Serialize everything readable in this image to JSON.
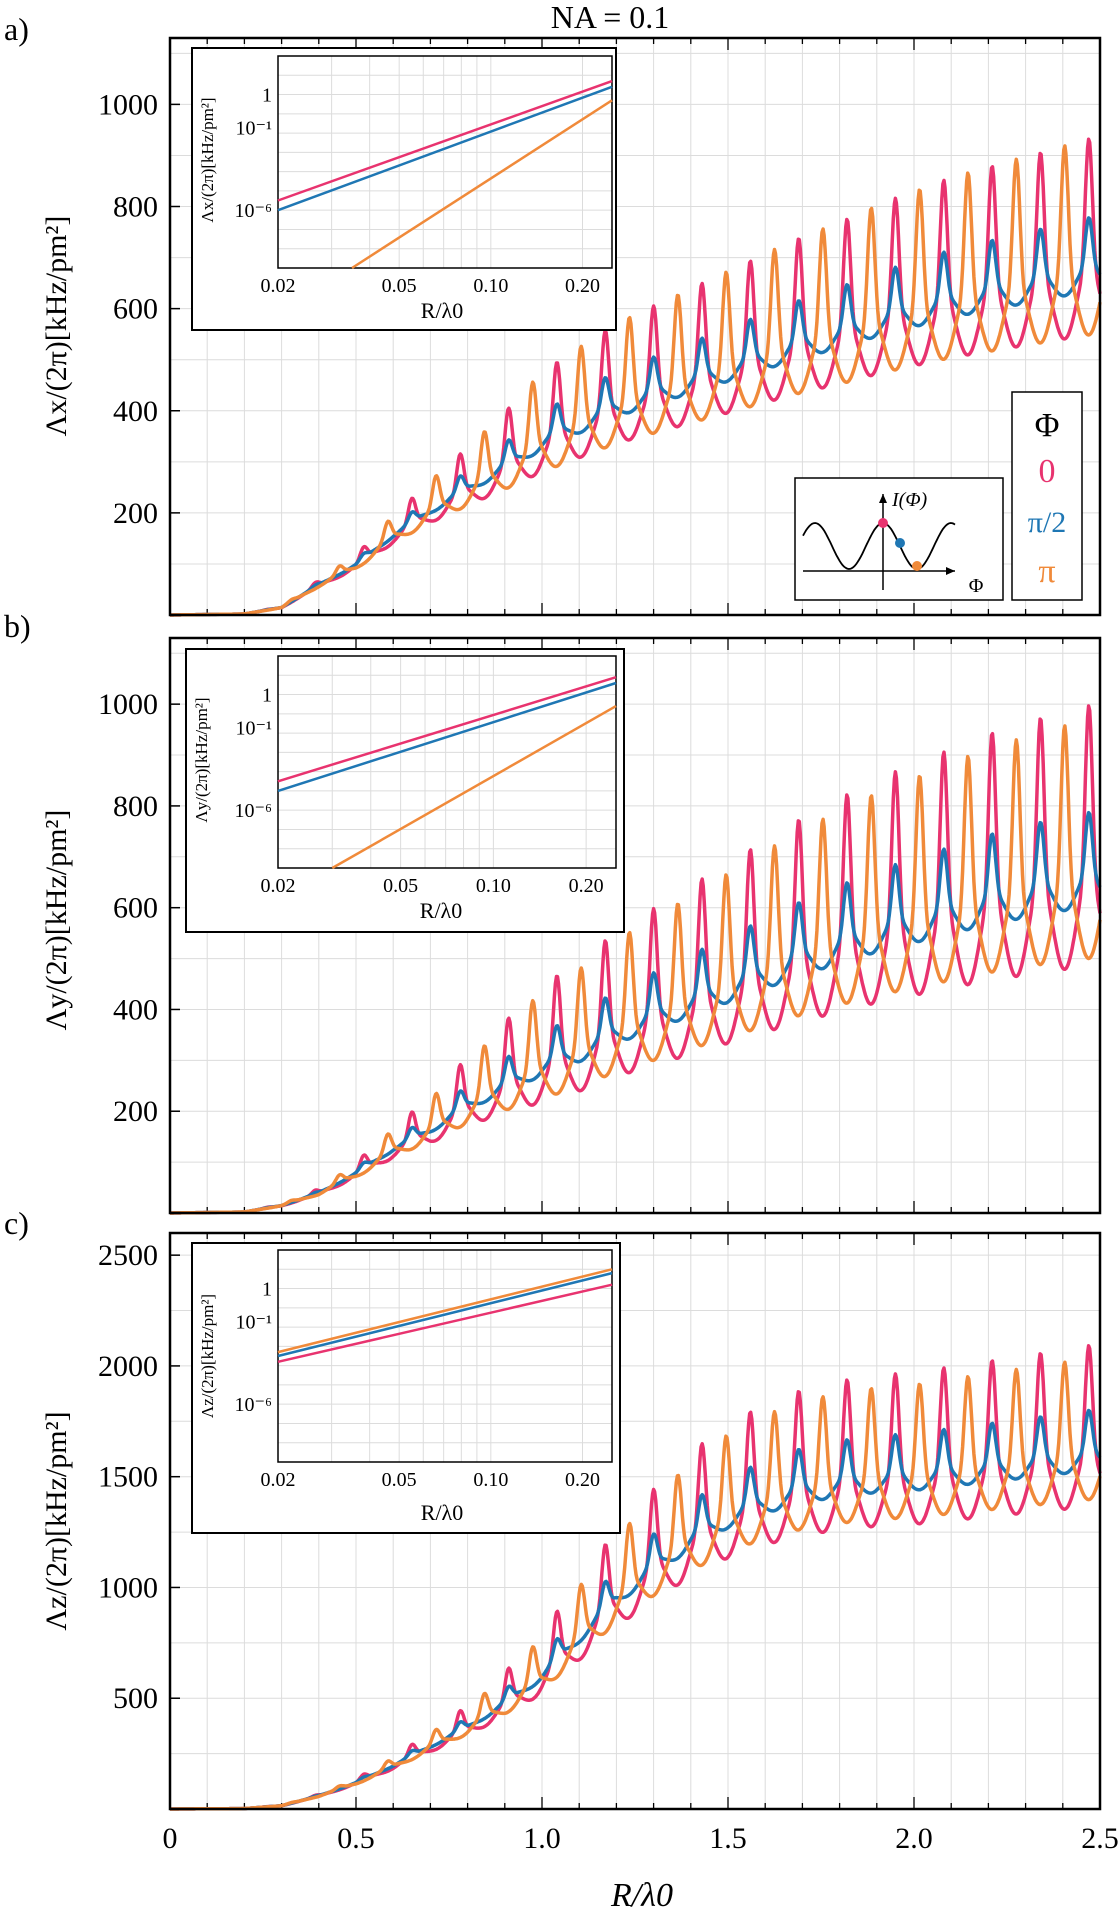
{
  "figure": {
    "title": "NA = 0.1",
    "xlabel": "R/λ0",
    "xticks": [
      "0",
      "0.5",
      "1.0",
      "1.5",
      "2.0",
      "2.5"
    ],
    "colors": {
      "phi0": "#e8336f",
      "phi_pi2": "#1f77b4",
      "phi_pi": "#f08a3a"
    }
  },
  "legend": {
    "title": "Φ",
    "entries": [
      {
        "label": "0",
        "color": "#e8336f"
      },
      {
        "label": "π/2",
        "color": "#1f77b4"
      },
      {
        "label": "π",
        "color": "#f08a3a"
      }
    ],
    "schematic": {
      "ylabel": "I(Φ)",
      "xlabel": "Φ"
    }
  },
  "chart_data": [
    {
      "type": "line",
      "panel": "a)",
      "ylabel": "Λx/(2π)[kHz/pm²]",
      "xlim": [
        0,
        2.5
      ],
      "ylim": [
        0,
        1130
      ],
      "yticks": [
        200,
        400,
        600,
        800,
        1000
      ],
      "envelope": [
        [
          0,
          0
        ],
        [
          0.2,
          2
        ],
        [
          0.3,
          15
        ],
        [
          0.4,
          60
        ],
        [
          0.5,
          100
        ],
        [
          0.6,
          160
        ],
        [
          0.7,
          210
        ],
        [
          0.8,
          255
        ],
        [
          0.9,
          300
        ],
        [
          1.0,
          350
        ],
        [
          1.1,
          385
        ],
        [
          1.2,
          420
        ],
        [
          1.3,
          445
        ],
        [
          1.4,
          470
        ],
        [
          1.5,
          495
        ],
        [
          1.6,
          520
        ],
        [
          1.7,
          545
        ],
        [
          1.8,
          565
        ],
        [
          1.9,
          590
        ],
        [
          2.0,
          610
        ],
        [
          2.1,
          630
        ],
        [
          2.2,
          645
        ],
        [
          2.3,
          660
        ],
        [
          2.4,
          675
        ],
        [
          2.5,
          690
        ]
      ],
      "series": [
        {
          "name": "0",
          "color": "#e8336f",
          "osc_amp": 0.4,
          "sign": 1
        },
        {
          "name": "π/2",
          "color": "#1f77b4",
          "osc_amp": 0.15,
          "sign": 1
        },
        {
          "name": "π",
          "color": "#f08a3a",
          "osc_amp": 0.4,
          "sign": -1
        }
      ],
      "inset": {
        "ylabel": "Λx/(2π)[kHz/pm²]",
        "xlabel": "R/λ0",
        "xticks": [
          "0.02",
          "0.05",
          "0.10",
          "0.20"
        ],
        "yticks": [
          "1",
          "10⁻¹",
          "10⁻⁶"
        ],
        "ylog_range": [
          -9,
          2
        ],
        "series": [
          {
            "name": "0",
            "color": "#e8336f",
            "log_at_0.02": -5.5,
            "log_at_0.25": 0.7
          },
          {
            "name": "π/2",
            "color": "#1f77b4",
            "log_at_0.02": -6.0,
            "log_at_0.25": 0.4
          },
          {
            "name": "π",
            "color": "#f08a3a",
            "log_at_0.035": -9.0,
            "log_at_0.25": -0.3
          }
        ]
      }
    },
    {
      "type": "line",
      "panel": "b)",
      "ylabel": "Λy/(2π)[kHz/pm²]",
      "xlim": [
        0,
        2.5
      ],
      "ylim": [
        0,
        1130
      ],
      "yticks": [
        200,
        400,
        600,
        800,
        1000
      ],
      "envelope": [
        [
          0,
          0
        ],
        [
          0.2,
          2
        ],
        [
          0.3,
          15
        ],
        [
          0.4,
          40
        ],
        [
          0.5,
          80
        ],
        [
          0.6,
          130
        ],
        [
          0.7,
          170
        ],
        [
          0.8,
          220
        ],
        [
          0.9,
          260
        ],
        [
          1.0,
          300
        ],
        [
          1.1,
          330
        ],
        [
          1.2,
          370
        ],
        [
          1.3,
          400
        ],
        [
          1.4,
          430
        ],
        [
          1.5,
          460
        ],
        [
          1.6,
          490
        ],
        [
          1.7,
          520
        ],
        [
          1.8,
          545
        ],
        [
          1.9,
          570
        ],
        [
          2.0,
          590
        ],
        [
          2.1,
          610
        ],
        [
          2.2,
          630
        ],
        [
          2.3,
          645
        ],
        [
          2.4,
          660
        ],
        [
          2.5,
          670
        ]
      ],
      "series": [
        {
          "name": "0",
          "color": "#e8336f",
          "osc_amp": 0.55,
          "sign": 1
        },
        {
          "name": "π/2",
          "color": "#1f77b4",
          "osc_amp": 0.2,
          "sign": 1
        },
        {
          "name": "π",
          "color": "#f08a3a",
          "osc_amp": 0.5,
          "sign": -1
        }
      ],
      "inset": {
        "ylabel": "Λy/(2π)[kHz/pm²]",
        "xlabel": "R/λ0",
        "xticks": [
          "0.02",
          "0.05",
          "0.10",
          "0.20"
        ],
        "yticks": [
          "1",
          "10⁻¹",
          "10⁻⁶"
        ],
        "ylog_range": [
          -9,
          2
        ],
        "series": [
          {
            "name": "0",
            "color": "#e8336f",
            "log_at_0.02": -4.5,
            "log_at_0.25": 0.9
          },
          {
            "name": "π/2",
            "color": "#1f77b4",
            "log_at_0.02": -5.0,
            "log_at_0.25": 0.6
          },
          {
            "name": "π",
            "color": "#f08a3a",
            "log_at_0.03": -9.0,
            "log_at_0.25": -0.6
          }
        ]
      }
    },
    {
      "type": "line",
      "panel": "c)",
      "ylabel": "Λz/(2π)[kHz/pm²]",
      "xlim": [
        0,
        2.5
      ],
      "ylim": [
        0,
        2600
      ],
      "yticks": [
        500,
        1000,
        1500,
        2000,
        2500
      ],
      "envelope": [
        [
          0,
          0
        ],
        [
          0.2,
          2
        ],
        [
          0.3,
          15
        ],
        [
          0.4,
          60
        ],
        [
          0.5,
          120
        ],
        [
          0.6,
          200
        ],
        [
          0.7,
          290
        ],
        [
          0.8,
          380
        ],
        [
          0.9,
          490
        ],
        [
          1.0,
          620
        ],
        [
          1.1,
          800
        ],
        [
          1.2,
          980
        ],
        [
          1.3,
          1120
        ],
        [
          1.4,
          1250
        ],
        [
          1.5,
          1350
        ],
        [
          1.6,
          1420
        ],
        [
          1.7,
          1470
        ],
        [
          1.8,
          1500
        ],
        [
          1.9,
          1520
        ],
        [
          2.0,
          1530
        ],
        [
          2.1,
          1550
        ],
        [
          2.2,
          1570
        ],
        [
          2.3,
          1590
        ],
        [
          2.4,
          1610
        ],
        [
          2.5,
          1630
        ]
      ],
      "series": [
        {
          "name": "0",
          "color": "#e8336f",
          "osc_amp": 0.32,
          "sign": 1
        },
        {
          "name": "π/2",
          "color": "#1f77b4",
          "osc_amp": 0.12,
          "sign": 1
        },
        {
          "name": "π",
          "color": "#f08a3a",
          "osc_amp": 0.28,
          "sign": -1
        }
      ],
      "inset": {
        "ylabel": "Λz/(2π)[kHz/pm²]",
        "xlabel": "R/λ0",
        "xticks": [
          "0.02",
          "0.05",
          "0.10",
          "0.20"
        ],
        "yticks": [
          "1",
          "10⁻¹",
          "10⁻⁶"
        ],
        "ylog_range": [
          -9,
          2
        ],
        "series": [
          {
            "name": "0",
            "color": "#e8336f",
            "log_at_0.02": -3.8,
            "log_at_0.25": 0.2
          },
          {
            "name": "π/2",
            "color": "#1f77b4",
            "log_at_0.02": -3.5,
            "log_at_0.25": 0.8
          },
          {
            "name": "π",
            "color": "#f08a3a",
            "log_at_0.02": -3.3,
            "log_at_0.25": 1.0
          }
        ]
      }
    }
  ]
}
